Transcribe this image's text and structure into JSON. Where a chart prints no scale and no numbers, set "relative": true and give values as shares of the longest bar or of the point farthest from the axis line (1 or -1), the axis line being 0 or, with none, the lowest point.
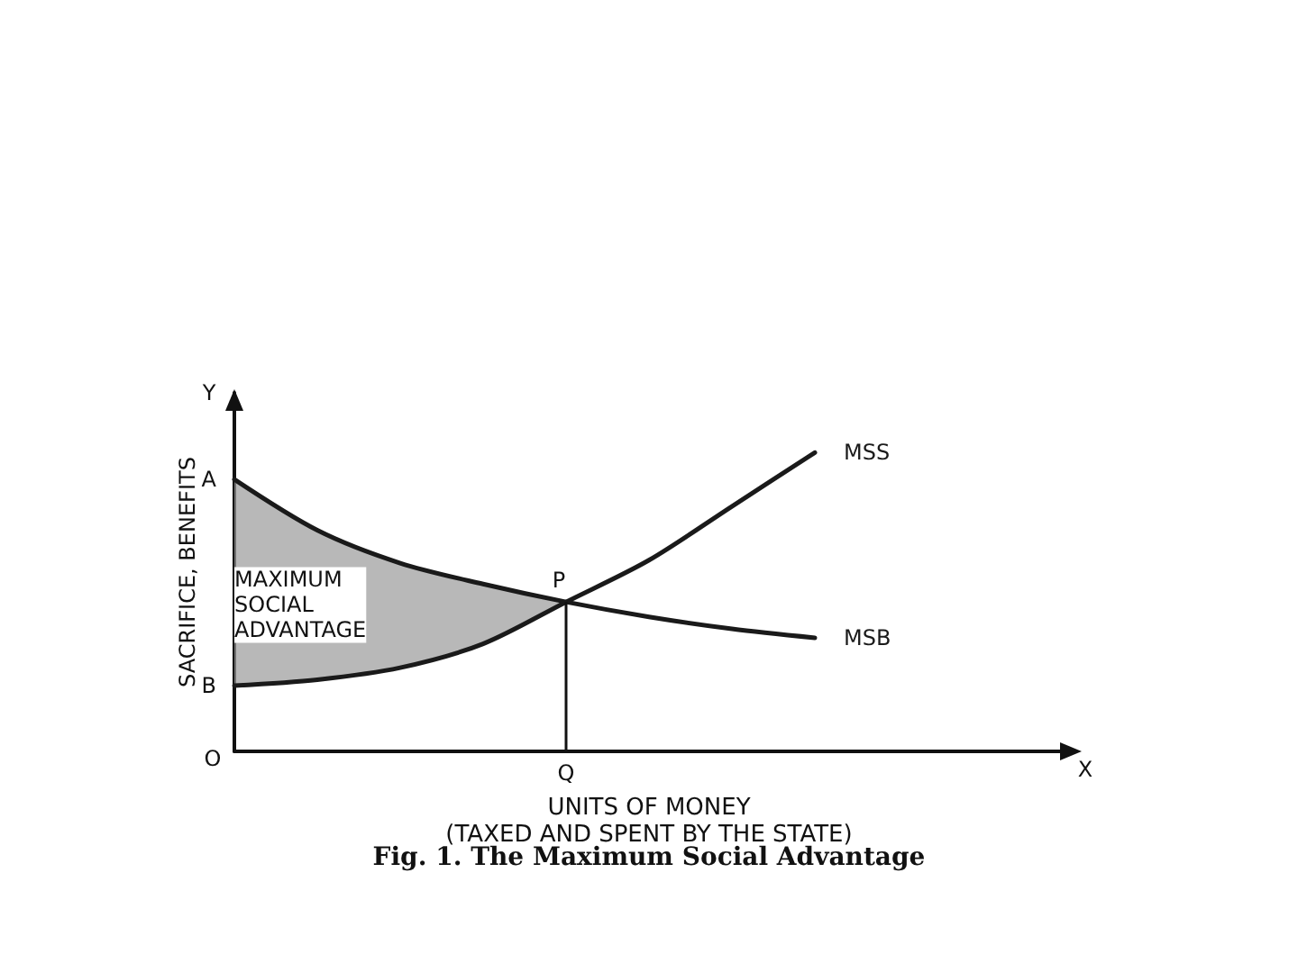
{
  "chart_data": {
    "type": "line",
    "relative": true,
    "title": "Fig. 1. The Maximum Social Advantage",
    "xlabel": "UNITS OF MONEY\n(TAXED AND SPENT BY THE STATE)",
    "ylabel": "SACRIFICE, BENEFITS",
    "categories": [
      null,
      null,
      null,
      null,
      null,
      null,
      null,
      null,
      null,
      null,
      null
    ],
    "series": [
      {
        "name": "MSS",
        "color": "#1a1a1a",
        "values": [
          0.22,
          0.24,
          0.28,
          0.36,
          0.5,
          0.64,
          0.82,
          1.0,
          null,
          null,
          null
        ]
      },
      {
        "name": "MSB",
        "color": "#1a1a1a",
        "values": [
          0.91,
          0.74,
          0.63,
          0.56,
          0.5,
          0.45,
          0.41,
          0.38,
          null,
          null,
          null
        ],
        "lower": [
          0.22,
          0.24,
          0.28,
          0.36,
          0.5,
          null,
          null,
          null,
          null,
          null,
          null
        ],
        "upper": [
          0.91,
          0.74,
          0.63,
          0.56,
          0.5,
          null,
          null,
          null,
          null,
          null,
          null
        ]
      }
    ],
    "annotations": [
      "A",
      "B",
      {
        "text": "P",
        "y": 0.5
      },
      "Q",
      "O",
      "Y",
      "X",
      "MAXIMUM\nSOCIAL\nADVANTAGE"
    ],
    "legend": false,
    "grid": false,
    "marker": "none",
    "line_style": "solid"
  }
}
